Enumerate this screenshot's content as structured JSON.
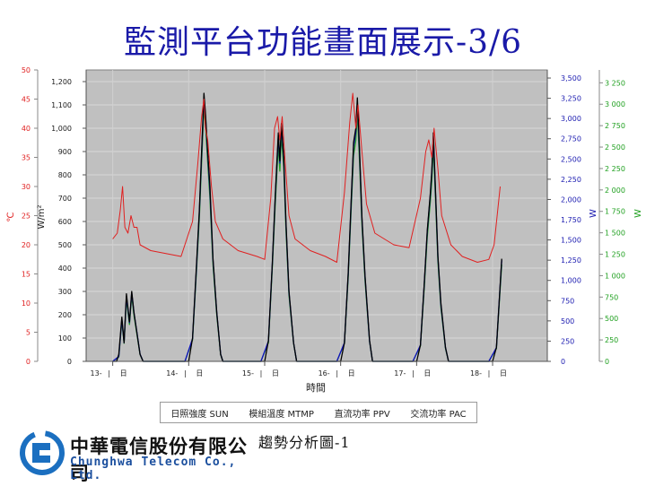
{
  "title": "監測平台功能畫面展示-3/6",
  "caption": "趨勢分析圖-1",
  "logo": {
    "name_cn": "中華電信股份有限公司",
    "name_en": "Chunghwa Telecom Co., Ltd."
  },
  "chart_data": {
    "type": "line",
    "xlabel": "時間",
    "x_ticks": [
      "13-",
      "14-",
      "15-",
      "16-",
      "17-",
      "18-"
    ],
    "x_tick_suffix": "日",
    "axes": {
      "celsius": {
        "label": "℃",
        "ticks": [
          0,
          5,
          10,
          15,
          20,
          25,
          30,
          35,
          40,
          45,
          50
        ],
        "color": "#e02020"
      },
      "irradiance": {
        "label": "W/m²",
        "ticks": [
          "0",
          "100",
          "200",
          "300",
          "400",
          "500",
          "600",
          "700",
          "800",
          "900",
          "1,000",
          "1,100",
          "1,200"
        ],
        "color": "#1a1a1a"
      },
      "ppv": {
        "label": "W",
        "ticks": [
          "0",
          "250",
          "500",
          "750",
          "1,000",
          "1,250",
          "1,500",
          "1,750",
          "2,000",
          "2,250",
          "2,500",
          "2,750",
          "3,000",
          "3,250",
          "3,500"
        ],
        "color": "#1a1ab0"
      },
      "pac": {
        "label": "W",
        "ticks": [
          "0",
          "250",
          "500",
          "750",
          "1 000",
          "1 250",
          "1 500",
          "1 750",
          "2 000",
          "2 250",
          "2 500",
          "2 750",
          "3 000",
          "3 250"
        ],
        "color": "#20a020"
      }
    },
    "ylim": {
      "celsius": [
        0,
        50
      ],
      "irradiance": [
        0,
        1250
      ],
      "ppv": [
        0,
        3600
      ],
      "pac": [
        0,
        3400
      ]
    },
    "grid": true,
    "legend_position": "bottom",
    "series": [
      {
        "name": "日照強度 SUN",
        "axis": "irradiance",
        "color": "#000000",
        "points": [
          [
            13.0,
            0
          ],
          [
            13.05,
            0
          ],
          [
            13.08,
            30
          ],
          [
            13.12,
            190
          ],
          [
            13.15,
            80
          ],
          [
            13.18,
            290
          ],
          [
            13.22,
            170
          ],
          [
            13.25,
            300
          ],
          [
            13.28,
            210
          ],
          [
            13.32,
            120
          ],
          [
            13.36,
            30
          ],
          [
            13.4,
            0
          ],
          [
            13.95,
            0
          ],
          [
            14.0,
            0
          ],
          [
            14.05,
            100
          ],
          [
            14.1,
            400
          ],
          [
            14.14,
            650
          ],
          [
            14.17,
            900
          ],
          [
            14.2,
            1150
          ],
          [
            14.22,
            1070
          ],
          [
            14.25,
            900
          ],
          [
            14.28,
            750
          ],
          [
            14.32,
            440
          ],
          [
            14.37,
            210
          ],
          [
            14.42,
            30
          ],
          [
            14.45,
            0
          ],
          [
            14.95,
            0
          ],
          [
            15.0,
            0
          ],
          [
            15.05,
            90
          ],
          [
            15.1,
            420
          ],
          [
            15.14,
            720
          ],
          [
            15.18,
            980
          ],
          [
            15.2,
            860
          ],
          [
            15.22,
            1020
          ],
          [
            15.25,
            880
          ],
          [
            15.28,
            600
          ],
          [
            15.32,
            300
          ],
          [
            15.38,
            80
          ],
          [
            15.42,
            0
          ],
          [
            15.95,
            0
          ],
          [
            16.0,
            0
          ],
          [
            16.05,
            80
          ],
          [
            16.1,
            380
          ],
          [
            16.14,
            700
          ],
          [
            16.17,
            940
          ],
          [
            16.2,
            1000
          ],
          [
            16.22,
            1130
          ],
          [
            16.25,
            900
          ],
          [
            16.28,
            620
          ],
          [
            16.32,
            370
          ],
          [
            16.38,
            90
          ],
          [
            16.42,
            0
          ],
          [
            16.95,
            0
          ],
          [
            17.0,
            0
          ],
          [
            17.05,
            70
          ],
          [
            17.1,
            330
          ],
          [
            17.14,
            560
          ],
          [
            17.18,
            720
          ],
          [
            17.2,
            820
          ],
          [
            17.22,
            980
          ],
          [
            17.25,
            720
          ],
          [
            17.28,
            450
          ],
          [
            17.32,
            250
          ],
          [
            17.38,
            60
          ],
          [
            17.42,
            0
          ],
          [
            17.95,
            0
          ],
          [
            18.0,
            0
          ],
          [
            18.05,
            60
          ],
          [
            18.08,
            220
          ],
          [
            18.12,
            440
          ]
        ]
      },
      {
        "name": "模組溫度 MTMP",
        "axis": "celsius",
        "color": "#e02020",
        "points": [
          [
            13.0,
            21
          ],
          [
            13.06,
            22
          ],
          [
            13.1,
            26
          ],
          [
            13.13,
            30
          ],
          [
            13.16,
            23
          ],
          [
            13.2,
            22
          ],
          [
            13.24,
            25
          ],
          [
            13.28,
            23
          ],
          [
            13.32,
            23
          ],
          [
            13.36,
            20
          ],
          [
            13.5,
            19
          ],
          [
            13.7,
            18.5
          ],
          [
            13.9,
            18
          ],
          [
            14.05,
            24
          ],
          [
            14.12,
            34
          ],
          [
            14.17,
            42
          ],
          [
            14.2,
            45
          ],
          [
            14.22,
            40
          ],
          [
            14.25,
            38
          ],
          [
            14.3,
            30
          ],
          [
            14.35,
            24
          ],
          [
            14.45,
            21
          ],
          [
            14.65,
            19
          ],
          [
            14.9,
            18
          ],
          [
            15.0,
            17.5
          ],
          [
            15.08,
            28
          ],
          [
            15.13,
            40
          ],
          [
            15.17,
            42
          ],
          [
            15.2,
            38
          ],
          [
            15.23,
            42
          ],
          [
            15.27,
            34
          ],
          [
            15.32,
            25
          ],
          [
            15.4,
            21
          ],
          [
            15.6,
            19
          ],
          [
            15.8,
            18
          ],
          [
            15.95,
            17
          ],
          [
            16.05,
            29
          ],
          [
            16.12,
            41
          ],
          [
            16.16,
            46
          ],
          [
            16.2,
            40
          ],
          [
            16.23,
            44
          ],
          [
            16.28,
            36
          ],
          [
            16.34,
            27
          ],
          [
            16.45,
            22
          ],
          [
            16.7,
            20
          ],
          [
            16.9,
            19.5
          ],
          [
            17.05,
            28
          ],
          [
            17.12,
            36
          ],
          [
            17.16,
            38
          ],
          [
            17.2,
            35
          ],
          [
            17.23,
            40
          ],
          [
            17.28,
            33
          ],
          [
            17.33,
            25
          ],
          [
            17.45,
            20
          ],
          [
            17.6,
            18
          ],
          [
            17.8,
            17
          ],
          [
            17.95,
            17.5
          ],
          [
            18.02,
            20
          ],
          [
            18.06,
            25
          ],
          [
            18.1,
            30
          ]
        ]
      },
      {
        "name": "直流功率 PPV",
        "axis": "ppv",
        "color": "#1010c0",
        "points": [
          [
            13.0,
            0
          ],
          [
            13.08,
            60
          ],
          [
            13.12,
            520
          ],
          [
            13.15,
            230
          ],
          [
            13.18,
            800
          ],
          [
            13.22,
            480
          ],
          [
            13.25,
            850
          ],
          [
            13.28,
            600
          ],
          [
            13.32,
            350
          ],
          [
            13.36,
            90
          ],
          [
            13.4,
            0
          ],
          [
            13.95,
            0
          ],
          [
            14.05,
            280
          ],
          [
            14.1,
            1120
          ],
          [
            14.14,
            1850
          ],
          [
            14.17,
            2550
          ],
          [
            14.2,
            3250
          ],
          [
            14.22,
            3050
          ],
          [
            14.25,
            2550
          ],
          [
            14.28,
            2100
          ],
          [
            14.32,
            1250
          ],
          [
            14.37,
            600
          ],
          [
            14.42,
            90
          ],
          [
            14.45,
            0
          ],
          [
            14.95,
            0
          ],
          [
            15.05,
            250
          ],
          [
            15.1,
            1200
          ],
          [
            15.14,
            2050
          ],
          [
            15.18,
            2780
          ],
          [
            15.2,
            2450
          ],
          [
            15.22,
            2900
          ],
          [
            15.25,
            2500
          ],
          [
            15.28,
            1700
          ],
          [
            15.32,
            850
          ],
          [
            15.38,
            230
          ],
          [
            15.42,
            0
          ],
          [
            15.95,
            0
          ],
          [
            16.05,
            230
          ],
          [
            16.1,
            1080
          ],
          [
            16.14,
            1980
          ],
          [
            16.17,
            2650
          ],
          [
            16.2,
            2840
          ],
          [
            16.22,
            3200
          ],
          [
            16.25,
            2550
          ],
          [
            16.28,
            1760
          ],
          [
            16.32,
            1050
          ],
          [
            16.38,
            250
          ],
          [
            16.42,
            0
          ],
          [
            16.95,
            0
          ],
          [
            17.05,
            200
          ],
          [
            17.1,
            940
          ],
          [
            17.14,
            1600
          ],
          [
            17.18,
            2050
          ],
          [
            17.2,
            2330
          ],
          [
            17.22,
            2780
          ],
          [
            17.25,
            2050
          ],
          [
            17.28,
            1280
          ],
          [
            17.32,
            700
          ],
          [
            17.38,
            170
          ],
          [
            17.42,
            0
          ],
          [
            17.95,
            0
          ],
          [
            18.05,
            170
          ],
          [
            18.08,
            630
          ],
          [
            18.12,
            1250
          ]
        ]
      },
      {
        "name": "交流功率 PAC",
        "axis": "pac",
        "color": "#20a020",
        "points": [
          [
            13.0,
            0
          ],
          [
            13.08,
            50
          ],
          [
            13.12,
            470
          ],
          [
            13.15,
            210
          ],
          [
            13.18,
            720
          ],
          [
            13.22,
            430
          ],
          [
            13.25,
            770
          ],
          [
            13.28,
            540
          ],
          [
            13.32,
            310
          ],
          [
            13.36,
            80
          ],
          [
            13.4,
            0
          ],
          [
            13.95,
            0
          ],
          [
            14.05,
            250
          ],
          [
            14.1,
            1020
          ],
          [
            14.14,
            1680
          ],
          [
            14.17,
            2320
          ],
          [
            14.2,
            2950
          ],
          [
            14.22,
            2770
          ],
          [
            14.25,
            2320
          ],
          [
            14.28,
            1900
          ],
          [
            14.32,
            1130
          ],
          [
            14.37,
            540
          ],
          [
            14.42,
            80
          ],
          [
            14.45,
            0
          ],
          [
            14.95,
            0
          ],
          [
            15.05,
            220
          ],
          [
            15.1,
            1090
          ],
          [
            15.14,
            1860
          ],
          [
            15.18,
            2520
          ],
          [
            15.2,
            2220
          ],
          [
            15.22,
            2630
          ],
          [
            15.25,
            2270
          ],
          [
            15.28,
            1540
          ],
          [
            15.32,
            770
          ],
          [
            15.38,
            210
          ],
          [
            15.42,
            0
          ],
          [
            15.95,
            0
          ],
          [
            16.05,
            210
          ],
          [
            16.1,
            980
          ],
          [
            16.14,
            1800
          ],
          [
            16.17,
            2400
          ],
          [
            16.2,
            2580
          ],
          [
            16.22,
            2900
          ],
          [
            16.25,
            2310
          ],
          [
            16.28,
            1600
          ],
          [
            16.32,
            950
          ],
          [
            16.38,
            230
          ],
          [
            16.42,
            0
          ],
          [
            16.95,
            0
          ],
          [
            17.05,
            180
          ],
          [
            17.1,
            850
          ],
          [
            17.14,
            1450
          ],
          [
            17.18,
            1860
          ],
          [
            17.2,
            2110
          ],
          [
            17.22,
            2520
          ],
          [
            17.25,
            1860
          ],
          [
            17.28,
            1160
          ],
          [
            17.32,
            630
          ],
          [
            17.38,
            150
          ],
          [
            17.42,
            0
          ],
          [
            17.95,
            0
          ],
          [
            18.05,
            150
          ],
          [
            18.08,
            570
          ],
          [
            18.12,
            1130
          ]
        ]
      }
    ]
  }
}
